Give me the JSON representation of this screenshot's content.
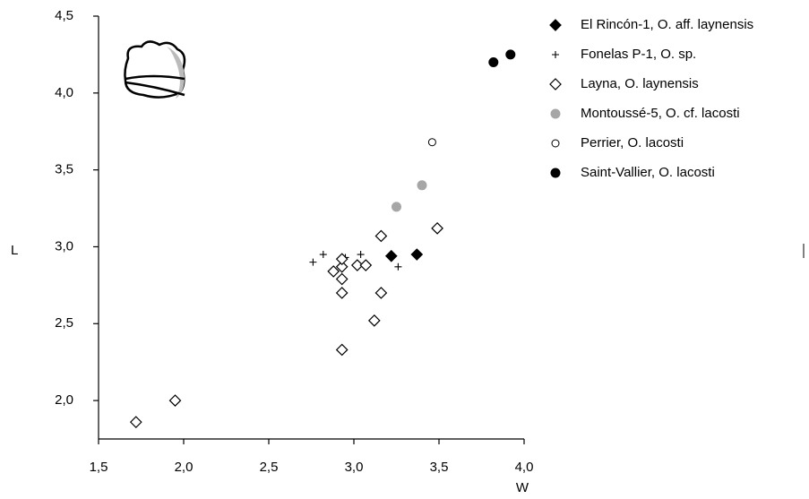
{
  "chart_data": {
    "type": "scatter",
    "xlabel": "W",
    "ylabel": "L",
    "xlim": [
      1.5,
      4.0
    ],
    "xticks": [
      {
        "value": 1.5,
        "label": "1,5"
      },
      {
        "value": 2.0,
        "label": "2,0"
      },
      {
        "value": 2.5,
        "label": "2,5"
      },
      {
        "value": 3.0,
        "label": "3,0"
      },
      {
        "value": 3.5,
        "label": "3,5"
      },
      {
        "value": 4.0,
        "label": "4,0"
      }
    ],
    "ylim": [
      1.75,
      4.5
    ],
    "yticks": [
      {
        "value": 2.0,
        "label": "2,0"
      },
      {
        "value": 2.5,
        "label": "2,5"
      },
      {
        "value": 3.0,
        "label": "3,0"
      },
      {
        "value": 3.5,
        "label": "3,5"
      },
      {
        "value": 4.0,
        "label": "4,0"
      },
      {
        "value": 4.5,
        "label": "4,5"
      }
    ],
    "grid": false,
    "legend": "right",
    "series": [
      {
        "name": "El Rincón-1, O. aff. laynensis",
        "color": "#000000",
        "marker": "diamond",
        "filled": true,
        "x": [
          3.22,
          3.37
        ],
        "values": [
          2.94,
          2.95
        ]
      },
      {
        "name": "Fonelas P-1, O. sp.",
        "color": "#000000",
        "marker": "plus",
        "filled": false,
        "x": [
          2.76,
          2.82,
          2.95,
          3.04,
          3.26
        ],
        "values": [
          2.9,
          2.95,
          2.93,
          2.95,
          2.87
        ]
      },
      {
        "name": "Layna, O. laynensis",
        "color": "#000000",
        "marker": "diamond",
        "filled": false,
        "x": [
          1.72,
          1.95,
          2.93,
          2.93,
          2.93,
          2.93,
          2.93,
          2.88,
          3.02,
          3.07,
          3.16,
          3.16,
          3.12,
          3.49
        ],
        "values": [
          1.86,
          2.0,
          2.33,
          2.7,
          2.79,
          2.87,
          2.92,
          2.84,
          2.88,
          2.88,
          3.07,
          2.7,
          2.52,
          3.12
        ]
      },
      {
        "name": "Montoussé-5, O. cf. lacosti",
        "color": "#a6a6a6",
        "marker": "circle",
        "filled": true,
        "x": [
          3.25,
          3.4
        ],
        "values": [
          3.26,
          3.4
        ]
      },
      {
        "name": "Perrier, O. lacosti",
        "color": "#000000",
        "marker": "circle",
        "filled": false,
        "x": [
          3.46
        ],
        "values": [
          3.68
        ]
      },
      {
        "name": "Saint-Vallier, O. lacosti",
        "color": "#000000",
        "marker": "circle",
        "filled": true,
        "x": [
          3.82,
          3.92
        ],
        "values": [
          4.2,
          4.25
        ]
      }
    ]
  }
}
